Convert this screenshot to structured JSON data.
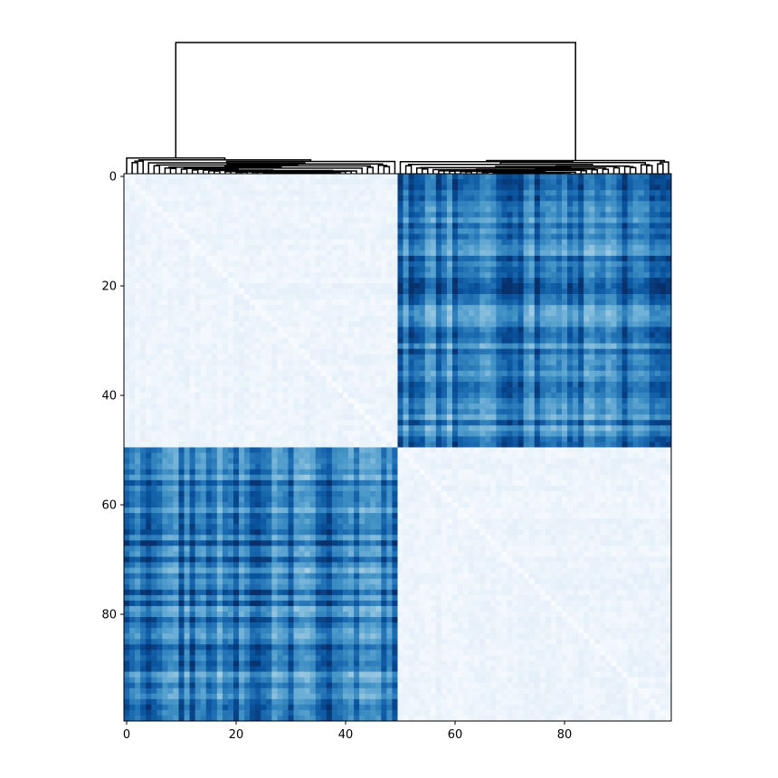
{
  "chart_data": {
    "type": "heatmap",
    "title": "",
    "xlabel": "",
    "ylabel": "",
    "n_rows": 100,
    "n_cols": 100,
    "xlim": [
      0,
      100
    ],
    "ylim": [
      100,
      0
    ],
    "x_ticks": [
      0,
      20,
      40,
      60,
      80
    ],
    "y_ticks": [
      0,
      20,
      40,
      60,
      80
    ],
    "x_tick_labels": [
      "0",
      "20",
      "40",
      "60",
      "80"
    ],
    "y_tick_labels": [
      "0",
      "20",
      "40",
      "60",
      "80"
    ],
    "colormap": "Blues",
    "colormap_stops": [
      "#f7fbff",
      "#deebf7",
      "#c6dbef",
      "#9ecae1",
      "#6baed6",
      "#4292c6",
      "#2171b5",
      "#08519c",
      "#08306b"
    ],
    "value_range": [
      0,
      1
    ],
    "clusters": [
      {
        "rows": [
          0,
          49
        ],
        "cols": [
          0,
          49
        ],
        "level": 0.04
      },
      {
        "rows": [
          0,
          49
        ],
        "cols": [
          50,
          99
        ],
        "level": 0.72
      },
      {
        "rows": [
          50,
          99
        ],
        "cols": [
          0,
          49
        ],
        "level": 0.72
      },
      {
        "rows": [
          50,
          99
        ],
        "cols": [
          50,
          99
        ],
        "level": 0.04
      }
    ],
    "diagonal_value": 0.0,
    "grid": false,
    "legend": "none",
    "dendrogram": {
      "position": "top",
      "leaf_count": 100,
      "root_split": 50,
      "root_height": 1.0,
      "cluster_heights": [
        0.12,
        0.1
      ],
      "color": "#000000"
    }
  }
}
